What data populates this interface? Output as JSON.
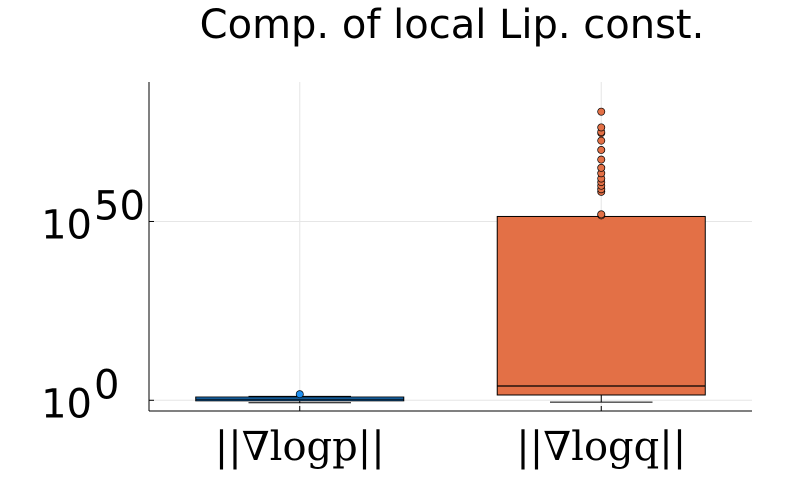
{
  "chart_data": {
    "type": "box",
    "title": "Comp. of local Lip. const.",
    "xlabel": "",
    "ylabel": "",
    "yscale": "log10",
    "ylim": [
      0.001,
      1e+89
    ],
    "grid": true,
    "legend": "none",
    "y_ticks": [
      {
        "base": "10",
        "exp": "0",
        "value": 1
      },
      {
        "base": "10",
        "exp": "50",
        "value": 1e+50
      }
    ],
    "categories": [
      "||∇logp||",
      "||∇logq||"
    ],
    "series": [
      {
        "color": "#1f8ff0",
        "q1": 0.7,
        "median": 2,
        "q3": 8,
        "whisker_low": 0.2,
        "whisker_high": 12,
        "outliers": [
          50
        ]
      },
      {
        "color": "#e37046",
        "q1": 30.0,
        "median": 10000.0,
        "q3": 2.5e+51,
        "whisker_low": 0.3,
        "whisker_high": 2.5e+51,
        "outliers": [
          5e+51,
          1e+52,
          2e+58,
          1e+59,
          1e+60,
          1e+61,
          1e+62,
          3e+63,
          1e+65,
          2e+67,
          1e+70,
          4e+72,
          5e+74,
          1e+75,
          2e+76,
          5e+80
        ]
      }
    ]
  }
}
